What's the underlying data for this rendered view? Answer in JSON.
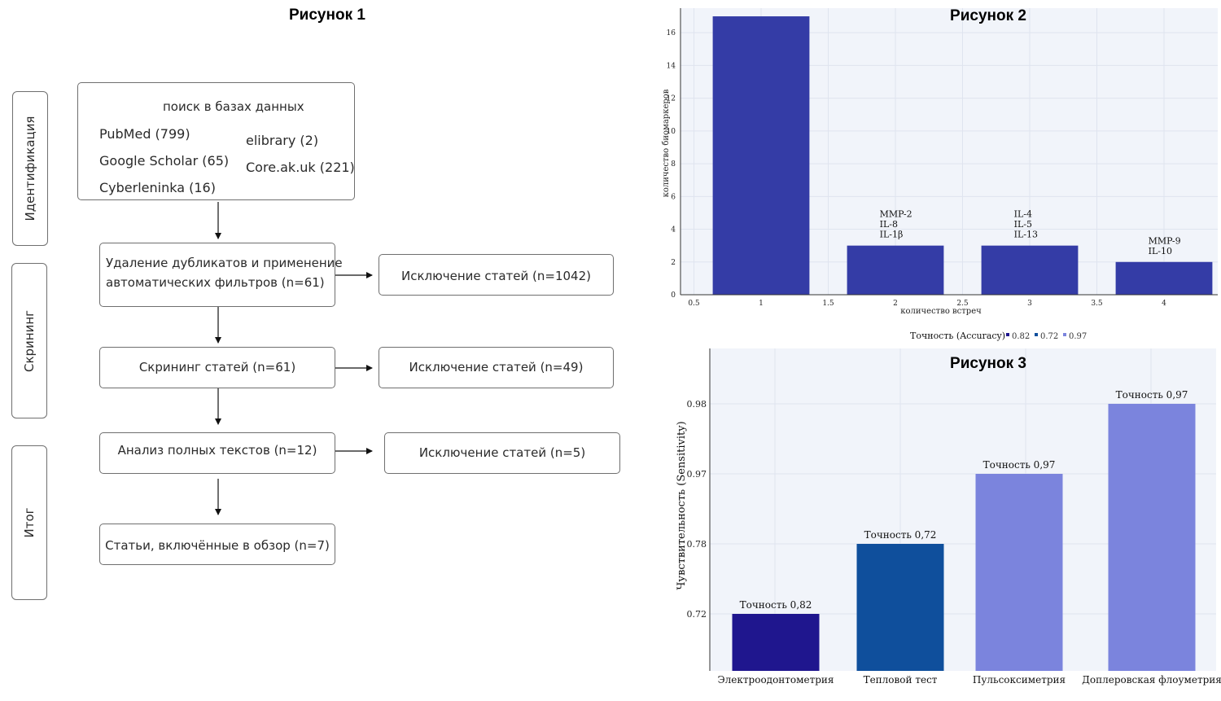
{
  "figure1": {
    "title": "Рисунок 1",
    "stages": {
      "identification": "Идентификация",
      "screening": "Скрининг",
      "result": "Итог"
    },
    "search_box": {
      "header": "поиск в базах данных",
      "sources": [
        "PubMed (799)",
        "Google Scholar (65)",
        "Cyberleninka (16)",
        "elibrary (2)",
        "Core.ak.uk (221)"
      ]
    },
    "steps": {
      "dedup_line1": "Удаление дубликатов и применение",
      "dedup_line2": "автоматических фильтров (n=61)",
      "screening": "Скрининг статей (n=61)",
      "fulltext": "Анализ полных текстов (n=12)",
      "included": "Статьи, включённые в обзор (n=7)"
    },
    "exclusions": {
      "after_dedup": "Исключение статей (n=1042)",
      "after_screening": "Исключение статей (n=49)",
      "after_fulltext": "Исключение статей (n=5)"
    }
  },
  "figure2": {
    "title": "Рисунок 2",
    "chart_data": {
      "type": "bar",
      "title": "Рисунок 2",
      "xlabel": "количество встреч",
      "ylabel": "количество биомаркеров",
      "x": [
        1,
        2,
        3,
        4
      ],
      "values": [
        17,
        3,
        3,
        2
      ],
      "xlim": [
        0.4,
        4.4
      ],
      "ylim": [
        0,
        17.5
      ],
      "xticks": [
        "0.5",
        "1",
        "1.5",
        "2",
        "2.5",
        "3",
        "3.5",
        "4"
      ],
      "yticks": [
        "0",
        "2",
        "4",
        "6",
        "8",
        "10",
        "12",
        "14",
        "16"
      ],
      "annotations": [
        {
          "x": 2,
          "lines": [
            "MMP-2",
            "IL-8",
            "IL-1β"
          ]
        },
        {
          "x": 3,
          "lines": [
            "IL-4",
            "IL-5",
            "IL-13"
          ]
        },
        {
          "x": 4,
          "lines": [
            "MMP-9",
            "IL-10"
          ]
        }
      ],
      "bar_color": "#343ca6",
      "background": "#f1f4fa",
      "grid": true
    }
  },
  "figure3": {
    "title": "Рисунок 3",
    "chart_data": {
      "type": "bar",
      "title": "Рисунок 3",
      "categories": [
        "Электроодонтометрия",
        "Тепловой тест",
        "Пульсоксиметрия",
        "Доплеровская флоуметрия"
      ],
      "values": [
        0.72,
        0.78,
        0.97,
        0.98
      ],
      "value_labels": [
        "Точность 0,82",
        "Точность 0,72",
        "Точность 0,97",
        "Точность 0,97"
      ],
      "colors": [
        "#1f168e",
        "#0f4f9c",
        "#7b84dd",
        "#7b84dd"
      ],
      "ylabel": "Чувствительность (Sensitivity)",
      "yticks": [
        "0.72",
        "0.78",
        "0.97",
        "0.98"
      ],
      "legend": {
        "title": "Точность (Accuracy)",
        "entries": [
          "0.82",
          "0.72",
          "0.97"
        ],
        "colors": [
          "#1f168e",
          "#0f4f9c",
          "#7b84dd"
        ]
      },
      "background": "#f1f4fa",
      "grid": true
    }
  }
}
